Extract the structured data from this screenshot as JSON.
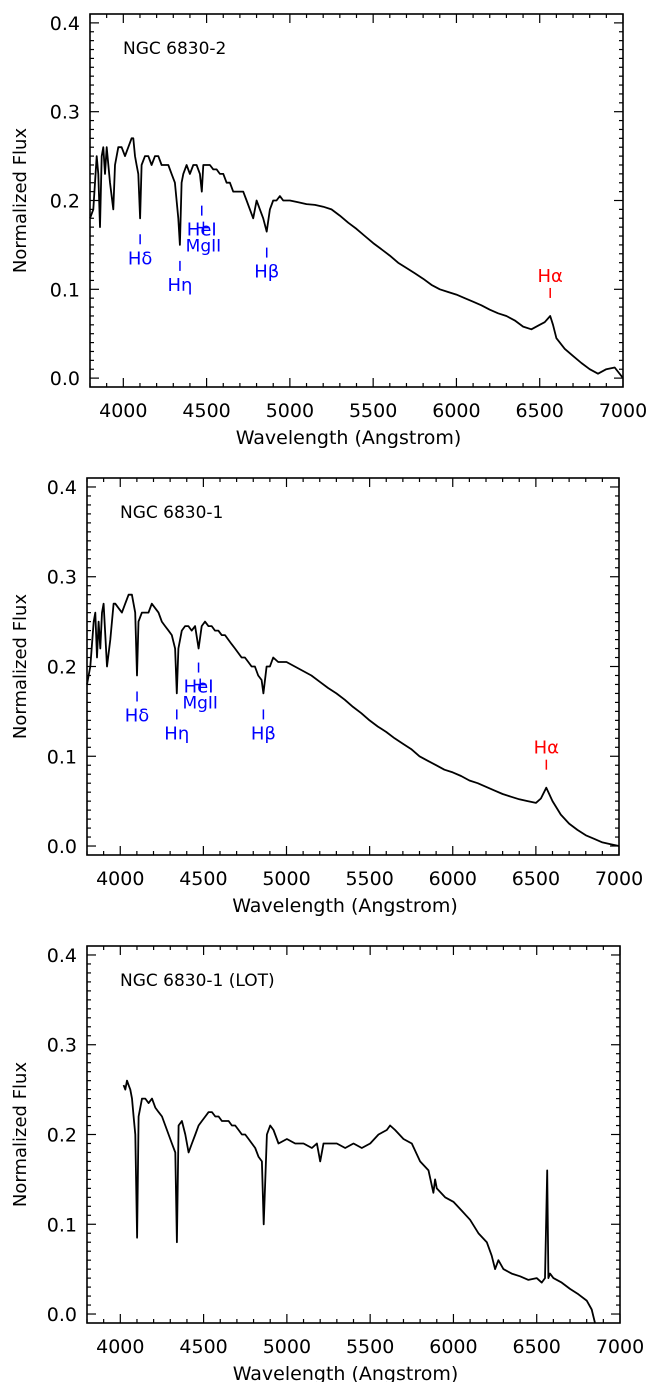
{
  "colors": {
    "axis": "#000000",
    "spectrum": "#000000",
    "blue_lines": "#0000ff",
    "red_lines": "#ff0000"
  },
  "chart_data": [
    {
      "type": "line",
      "title": "NGC 6830-2",
      "xlabel": "Wavelength (Angstrom)",
      "ylabel": "Normalized Flux",
      "xlim": [
        3800,
        7000
      ],
      "ylim": [
        -0.01,
        0.41
      ],
      "xticks": [
        4000,
        4500,
        5000,
        5500,
        6000,
        6500,
        7000
      ],
      "yticks": [
        0.0,
        0.1,
        0.2,
        0.3,
        0.4
      ],
      "xtick_labels": [
        "4000",
        "4500",
        "5000",
        "5500",
        "6000",
        "6500",
        "7000"
      ],
      "ytick_labels": [
        "0.0",
        "0.1",
        "0.2",
        "0.3",
        "0.4"
      ],
      "grid": false,
      "series": [
        {
          "x": [
            3800,
            3820,
            3840,
            3850,
            3860,
            3870,
            3880,
            3890,
            3900,
            3920,
            3940,
            3950,
            3970,
            3990,
            4010,
            4030,
            4050,
            4060,
            4070,
            4080,
            4090,
            4101,
            4110,
            4130,
            4150,
            4170,
            4190,
            4210,
            4230,
            4250,
            4270,
            4290,
            4310,
            4330,
            4340,
            4350,
            4360,
            4380,
            4400,
            4420,
            4440,
            4460,
            4471,
            4480,
            4500,
            4520,
            4540,
            4560,
            4580,
            4600,
            4620,
            4640,
            4660,
            4680,
            4700,
            4720,
            4740,
            4760,
            4780,
            4800,
            4820,
            4840,
            4861,
            4880,
            4900,
            4920,
            4940,
            4960,
            4980,
            5000,
            5050,
            5100,
            5150,
            5200,
            5250,
            5300,
            5350,
            5400,
            5450,
            5500,
            5550,
            5600,
            5650,
            5700,
            5750,
            5800,
            5850,
            5900,
            5950,
            6000,
            6050,
            6100,
            6150,
            6200,
            6250,
            6300,
            6350,
            6400,
            6450,
            6500,
            6530,
            6563,
            6580,
            6600,
            6650,
            6700,
            6750,
            6800,
            6850,
            6900,
            6950,
            7000
          ],
          "y": [
            0.18,
            0.19,
            0.25,
            0.23,
            0.17,
            0.25,
            0.26,
            0.23,
            0.26,
            0.22,
            0.19,
            0.24,
            0.26,
            0.26,
            0.25,
            0.26,
            0.27,
            0.27,
            0.25,
            0.24,
            0.23,
            0.18,
            0.24,
            0.25,
            0.25,
            0.24,
            0.25,
            0.25,
            0.24,
            0.24,
            0.24,
            0.23,
            0.22,
            0.18,
            0.15,
            0.22,
            0.23,
            0.24,
            0.23,
            0.24,
            0.24,
            0.23,
            0.21,
            0.24,
            0.24,
            0.24,
            0.235,
            0.235,
            0.23,
            0.23,
            0.22,
            0.22,
            0.21,
            0.21,
            0.21,
            0.21,
            0.2,
            0.19,
            0.18,
            0.2,
            0.19,
            0.18,
            0.165,
            0.19,
            0.2,
            0.2,
            0.205,
            0.2,
            0.2,
            0.2,
            0.198,
            0.196,
            0.195,
            0.193,
            0.19,
            0.183,
            0.175,
            0.168,
            0.16,
            0.152,
            0.145,
            0.138,
            0.13,
            0.124,
            0.118,
            0.112,
            0.105,
            0.1,
            0.097,
            0.094,
            0.09,
            0.086,
            0.082,
            0.077,
            0.073,
            0.07,
            0.065,
            0.058,
            0.055,
            0.06,
            0.063,
            0.07,
            0.06,
            0.045,
            0.033,
            0.025,
            0.017,
            0.01,
            0.005,
            0.01,
            0.012,
            0.0
          ]
        }
      ],
      "annotations": [
        {
          "label": "Hδ",
          "x": 4101,
          "color": "blue"
        },
        {
          "label": "Hη",
          "x": 4340,
          "color": "blue"
        },
        {
          "label": "HeI",
          "x": 4471,
          "color": "blue"
        },
        {
          "label": "MgII",
          "x": 4481,
          "color": "blue"
        },
        {
          "label": "Hβ",
          "x": 4861,
          "color": "blue"
        },
        {
          "label": "Hα",
          "x": 6563,
          "color": "red"
        }
      ]
    },
    {
      "type": "line",
      "title": "NGC 6830-1",
      "xlabel": "Wavelength (Angstrom)",
      "ylabel": "Normalized Flux",
      "xlim": [
        3800,
        7000
      ],
      "ylim": [
        -0.01,
        0.41
      ],
      "xticks": [
        4000,
        4500,
        5000,
        5500,
        6000,
        6500,
        7000
      ],
      "yticks": [
        0.0,
        0.1,
        0.2,
        0.3,
        0.4
      ],
      "xtick_labels": [
        "4000",
        "4500",
        "5000",
        "5500",
        "6000",
        "6500",
        "7000"
      ],
      "ytick_labels": [
        "0.0",
        "0.1",
        "0.2",
        "0.3",
        "0.4"
      ],
      "grid": false,
      "series": [
        {
          "x": [
            3800,
            3820,
            3840,
            3850,
            3860,
            3870,
            3880,
            3890,
            3900,
            3920,
            3940,
            3960,
            3970,
            3990,
            4010,
            4030,
            4050,
            4070,
            4090,
            4101,
            4110,
            4130,
            4150,
            4170,
            4190,
            4210,
            4230,
            4250,
            4270,
            4290,
            4310,
            4330,
            4340,
            4350,
            4370,
            4390,
            4410,
            4430,
            4450,
            4471,
            4490,
            4510,
            4530,
            4550,
            4570,
            4590,
            4610,
            4630,
            4650,
            4670,
            4690,
            4710,
            4730,
            4750,
            4770,
            4790,
            4810,
            4830,
            4850,
            4861,
            4880,
            4900,
            4920,
            4950,
            5000,
            5050,
            5100,
            5150,
            5200,
            5250,
            5300,
            5350,
            5400,
            5450,
            5500,
            5550,
            5600,
            5650,
            5700,
            5750,
            5800,
            5850,
            5900,
            5950,
            6000,
            6050,
            6100,
            6150,
            6200,
            6250,
            6300,
            6350,
            6400,
            6450,
            6500,
            6530,
            6563,
            6580,
            6600,
            6650,
            6700,
            6750,
            6800,
            6850,
            6900,
            6950,
            7000
          ],
          "y": [
            0.18,
            0.2,
            0.25,
            0.26,
            0.21,
            0.25,
            0.22,
            0.26,
            0.27,
            0.2,
            0.23,
            0.27,
            0.27,
            0.265,
            0.26,
            0.27,
            0.28,
            0.28,
            0.26,
            0.19,
            0.25,
            0.26,
            0.26,
            0.26,
            0.27,
            0.265,
            0.26,
            0.25,
            0.245,
            0.24,
            0.235,
            0.22,
            0.17,
            0.22,
            0.24,
            0.245,
            0.245,
            0.24,
            0.245,
            0.22,
            0.245,
            0.25,
            0.245,
            0.245,
            0.24,
            0.24,
            0.235,
            0.235,
            0.23,
            0.225,
            0.22,
            0.215,
            0.21,
            0.21,
            0.205,
            0.2,
            0.2,
            0.19,
            0.185,
            0.17,
            0.2,
            0.2,
            0.21,
            0.205,
            0.205,
            0.2,
            0.195,
            0.19,
            0.183,
            0.176,
            0.17,
            0.163,
            0.155,
            0.148,
            0.14,
            0.133,
            0.127,
            0.12,
            0.114,
            0.108,
            0.1,
            0.095,
            0.09,
            0.085,
            0.082,
            0.078,
            0.073,
            0.07,
            0.066,
            0.062,
            0.058,
            0.055,
            0.052,
            0.05,
            0.048,
            0.053,
            0.065,
            0.058,
            0.05,
            0.035,
            0.025,
            0.018,
            0.012,
            0.008,
            0.004,
            0.002,
            0.0
          ]
        }
      ],
      "annotations": [
        {
          "label": "Hδ",
          "x": 4101,
          "color": "blue"
        },
        {
          "label": "Hη",
          "x": 4340,
          "color": "blue"
        },
        {
          "label": "HeI",
          "x": 4471,
          "color": "blue"
        },
        {
          "label": "MgII",
          "x": 4481,
          "color": "blue"
        },
        {
          "label": "Hβ",
          "x": 4861,
          "color": "blue"
        },
        {
          "label": "Hα",
          "x": 6563,
          "color": "red"
        }
      ]
    },
    {
      "type": "line",
      "title": "NGC 6830-1 (LOT)",
      "xlabel": "Wavelength (Angstrom)",
      "ylabel": "Normalized Flux",
      "xlim": [
        3800,
        7000
      ],
      "ylim": [
        -0.01,
        0.41
      ],
      "xticks": [
        4000,
        4500,
        5000,
        5500,
        6000,
        6500,
        7000
      ],
      "yticks": [
        0.0,
        0.1,
        0.2,
        0.3,
        0.4
      ],
      "xtick_labels": [
        "4000",
        "4500",
        "5000",
        "5500",
        "6000",
        "6500",
        "7000"
      ],
      "ytick_labels": [
        "0.0",
        "0.1",
        "0.2",
        "0.3",
        "0.4"
      ],
      "grid": false,
      "series": [
        {
          "x": [
            4020,
            4030,
            4040,
            4050,
            4060,
            4070,
            4080,
            4090,
            4101,
            4110,
            4130,
            4150,
            4170,
            4190,
            4210,
            4230,
            4250,
            4270,
            4290,
            4310,
            4330,
            4340,
            4350,
            4370,
            4390,
            4410,
            4430,
            4450,
            4470,
            4490,
            4510,
            4530,
            4550,
            4570,
            4590,
            4610,
            4630,
            4650,
            4670,
            4690,
            4710,
            4730,
            4750,
            4770,
            4790,
            4810,
            4830,
            4850,
            4861,
            4880,
            4900,
            4920,
            4950,
            5000,
            5050,
            5100,
            5150,
            5180,
            5200,
            5220,
            5250,
            5300,
            5350,
            5400,
            5450,
            5500,
            5550,
            5600,
            5620,
            5650,
            5700,
            5750,
            5800,
            5850,
            5880,
            5890,
            5900,
            5950,
            6000,
            6050,
            6100,
            6150,
            6200,
            6230,
            6250,
            6270,
            6300,
            6350,
            6400,
            6450,
            6500,
            6530,
            6550,
            6563,
            6570,
            6580,
            6600,
            6650,
            6700,
            6750,
            6800,
            6830,
            6850
          ],
          "y": [
            0.255,
            0.25,
            0.26,
            0.255,
            0.25,
            0.24,
            0.22,
            0.2,
            0.085,
            0.22,
            0.24,
            0.24,
            0.235,
            0.24,
            0.23,
            0.225,
            0.22,
            0.21,
            0.2,
            0.19,
            0.18,
            0.08,
            0.21,
            0.215,
            0.2,
            0.18,
            0.19,
            0.2,
            0.21,
            0.215,
            0.22,
            0.225,
            0.225,
            0.22,
            0.22,
            0.215,
            0.215,
            0.215,
            0.21,
            0.21,
            0.205,
            0.2,
            0.2,
            0.195,
            0.19,
            0.185,
            0.175,
            0.17,
            0.1,
            0.2,
            0.21,
            0.205,
            0.19,
            0.195,
            0.19,
            0.19,
            0.185,
            0.19,
            0.17,
            0.19,
            0.19,
            0.19,
            0.185,
            0.19,
            0.185,
            0.19,
            0.2,
            0.205,
            0.21,
            0.205,
            0.195,
            0.19,
            0.17,
            0.16,
            0.135,
            0.15,
            0.14,
            0.13,
            0.125,
            0.115,
            0.105,
            0.09,
            0.08,
            0.065,
            0.05,
            0.06,
            0.05,
            0.045,
            0.042,
            0.038,
            0.04,
            0.035,
            0.04,
            0.16,
            0.04,
            0.045,
            0.04,
            0.035,
            0.028,
            0.022,
            0.015,
            0.005,
            -0.01
          ]
        }
      ],
      "annotations": []
    }
  ]
}
